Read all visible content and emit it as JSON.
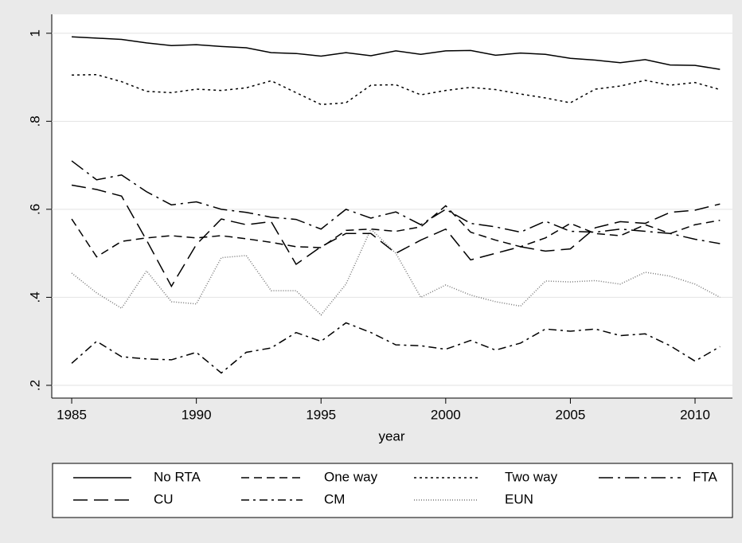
{
  "chart_data": {
    "type": "line",
    "x_label": "year",
    "x": [
      1985,
      1986,
      1987,
      1988,
      1989,
      1990,
      1991,
      1992,
      1993,
      1994,
      1995,
      1996,
      1997,
      1998,
      1999,
      2000,
      2001,
      2002,
      2003,
      2004,
      2005,
      2006,
      2007,
      2008,
      2009,
      2010,
      2011
    ],
    "xlim": [
      1984.2,
      2011.5
    ],
    "xticks": [
      1985,
      1990,
      1995,
      2000,
      2005,
      2010
    ],
    "ylim": [
      0.171,
      1.043
    ],
    "yticks": [
      {
        "value": 0.2,
        "label": ".2"
      },
      {
        "value": 0.4,
        "label": ".4"
      },
      {
        "value": 0.6,
        "label": ".6"
      },
      {
        "value": 0.8,
        "label": ".8"
      },
      1
    ],
    "grid": true,
    "legend": "bottom",
    "series": [
      {
        "name": "No RTA",
        "color": "#000000",
        "dash": "solid",
        "values": [
          0.992,
          0.989,
          0.986,
          0.978,
          0.972,
          0.974,
          0.97,
          0.967,
          0.956,
          0.954,
          0.948,
          0.956,
          0.949,
          0.96,
          0.952,
          0.96,
          0.961,
          0.95,
          0.955,
          0.952,
          0.943,
          0.939,
          0.933,
          0.94,
          0.928,
          0.927,
          0.918
        ]
      },
      {
        "name": "One way",
        "color": "#000000",
        "dash": "dash",
        "values": [
          0.578,
          0.492,
          0.527,
          0.535,
          0.54,
          0.535,
          0.54,
          0.533,
          0.525,
          0.515,
          0.513,
          0.552,
          0.555,
          0.55,
          0.56,
          0.608,
          0.548,
          0.53,
          0.515,
          0.535,
          0.568,
          0.545,
          0.54,
          0.565,
          0.545,
          0.565,
          0.575
        ]
      },
      {
        "name": "Two way",
        "color": "#000000",
        "dash": "dot",
        "values": [
          0.905,
          0.906,
          0.89,
          0.868,
          0.865,
          0.873,
          0.87,
          0.876,
          0.892,
          0.865,
          0.838,
          0.842,
          0.882,
          0.883,
          0.86,
          0.87,
          0.877,
          0.872,
          0.862,
          0.853,
          0.842,
          0.873,
          0.88,
          0.893,
          0.882,
          0.888,
          0.872
        ]
      },
      {
        "name": "FTA",
        "color": "#000000",
        "dash": "longdash-dot",
        "values": [
          0.71,
          0.667,
          0.678,
          0.64,
          0.61,
          0.617,
          0.6,
          0.593,
          0.582,
          0.577,
          0.555,
          0.6,
          0.58,
          0.594,
          0.565,
          0.6,
          0.568,
          0.56,
          0.548,
          0.573,
          0.55,
          0.548,
          0.555,
          0.55,
          0.545,
          0.532,
          0.522
        ]
      },
      {
        "name": "CU",
        "color": "#000000",
        "dash": "longdash",
        "values": [
          0.655,
          0.645,
          0.63,
          0.53,
          0.425,
          0.52,
          0.578,
          0.565,
          0.572,
          0.475,
          0.515,
          0.545,
          0.545,
          0.5,
          0.53,
          0.555,
          0.485,
          0.5,
          0.515,
          0.505,
          0.51,
          0.558,
          0.572,
          0.568,
          0.593,
          0.598,
          0.612
        ]
      },
      {
        "name": "CM",
        "color": "#000000",
        "dash": "dash-dot",
        "values": [
          0.25,
          0.3,
          0.265,
          0.26,
          0.258,
          0.275,
          0.228,
          0.275,
          0.285,
          0.32,
          0.3,
          0.342,
          0.32,
          0.292,
          0.29,
          0.282,
          0.302,
          0.28,
          0.296,
          0.328,
          0.323,
          0.328,
          0.313,
          0.317,
          0.29,
          0.255,
          0.288
        ]
      },
      {
        "name": "EUN",
        "color": "#777777",
        "dash": "shortdot",
        "values": [
          0.455,
          0.41,
          0.375,
          0.46,
          0.39,
          0.385,
          0.49,
          0.495,
          0.415,
          0.415,
          0.36,
          0.43,
          0.555,
          0.5,
          0.4,
          0.428,
          0.405,
          0.39,
          0.38,
          0.437,
          0.435,
          0.438,
          0.43,
          0.457,
          0.448,
          0.43,
          0.4
        ]
      }
    ]
  }
}
